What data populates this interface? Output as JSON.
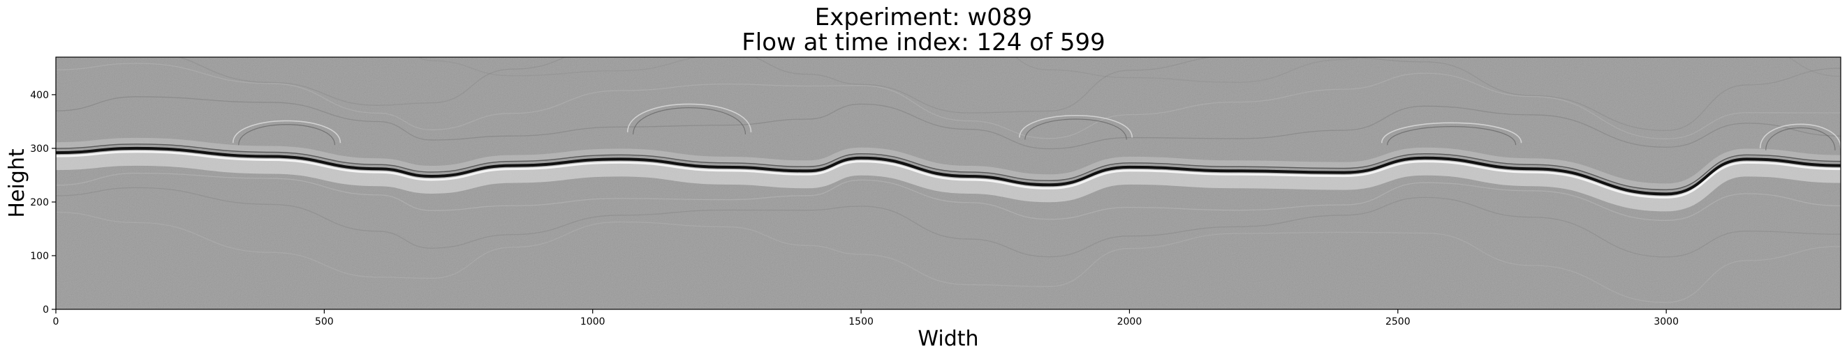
{
  "chart_data": {
    "type": "heatmap",
    "title": "Experiment: w089",
    "subtitle": "Flow at time index: 124 of 599",
    "xlabel": "Width",
    "ylabel": "Height",
    "xlim": [
      0,
      3325
    ],
    "ylim": [
      0,
      470
    ],
    "xticks": [
      0,
      500,
      1000,
      1500,
      2000,
      2500,
      3000
    ],
    "yticks": [
      0,
      100,
      200,
      300,
      400
    ],
    "colormap": "grayscale",
    "grid": false,
    "interface_height": {
      "x": [
        0,
        150,
        400,
        600,
        700,
        850,
        1050,
        1250,
        1400,
        1500,
        1700,
        1850,
        2000,
        2200,
        2400,
        2550,
        2750,
        3000,
        3150,
        3325
      ],
      "y": [
        292,
        300,
        285,
        262,
        248,
        268,
        280,
        265,
        258,
        282,
        248,
        232,
        265,
        258,
        255,
        282,
        262,
        215,
        280,
        268
      ]
    }
  },
  "colors": {
    "background": "#ffffff",
    "field": "#9a9a9a",
    "axis": "#000000"
  }
}
